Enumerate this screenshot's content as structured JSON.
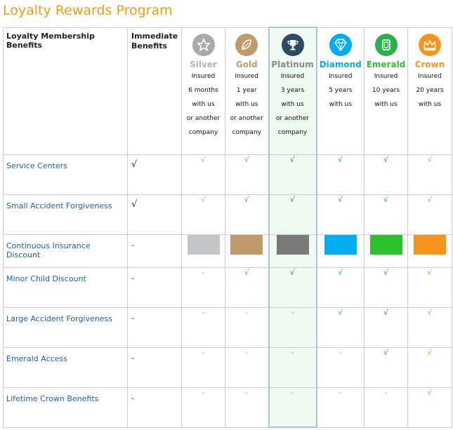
{
  "title": "Loyalty Rewards Program",
  "header": {
    "benefits_label": "Loyalty Membership Benefits",
    "immediate_label": "Immediate Benefits"
  },
  "tiers": [
    {
      "name": "Silver",
      "color": "#c3c6c8",
      "badge": "#a7a9ac",
      "icon": "star-icon",
      "desc": [
        "Insured",
        "6 months",
        "with us",
        "or another",
        "company"
      ]
    },
    {
      "name": "Gold",
      "color": "#c19a6b",
      "badge": "#c19a6b",
      "icon": "leaf-icon",
      "desc": [
        "Insured",
        "1 year",
        "with us",
        "or another",
        "company"
      ]
    },
    {
      "name": "Platinum",
      "color": "#7a7a7a",
      "badge": "#2b4a63",
      "icon": "trophy-icon",
      "desc": [
        "Insured",
        "3 years",
        "with us",
        "or another",
        "company"
      ]
    },
    {
      "name": "Diamond",
      "color": "#00aeef",
      "badge": "#00aeef",
      "icon": "diamond-icon",
      "desc": [
        "Insured",
        "5 years",
        "with us"
      ]
    },
    {
      "name": "Emerald",
      "color": "#2cc22c",
      "badge": "#2cb04a",
      "icon": "emerald-icon",
      "desc": [
        "Insured",
        "10 years",
        "with us"
      ]
    },
    {
      "name": "Crown",
      "color": "#f7941d",
      "badge": "#f7941d",
      "icon": "crown-icon",
      "desc": [
        "Insured",
        "20 years",
        "with us"
      ]
    }
  ],
  "rows": [
    {
      "label": "Service Centers",
      "immediate": "√",
      "cells": [
        "√",
        "√",
        "√",
        "√",
        "√",
        "√"
      ]
    },
    {
      "label": "Small Accident Forgiveness",
      "immediate": "√",
      "cells": [
        "√",
        "√",
        "√",
        "√",
        "√",
        "√"
      ]
    },
    {
      "label": "Continuous Insurance Discount",
      "immediate": "-",
      "cells": [
        "swatch",
        "swatch",
        "swatch",
        "swatch",
        "swatch",
        "swatch"
      ]
    },
    {
      "label": "Minor Child Discount",
      "immediate": "-",
      "cells": [
        "-",
        "√",
        "√",
        "√",
        "√",
        "√"
      ]
    },
    {
      "label": "Large Accident Forgiveness",
      "immediate": "-",
      "cells": [
        "-",
        "-",
        "-",
        "√",
        "√",
        "√"
      ]
    },
    {
      "label": "Emerald Access",
      "immediate": "-",
      "cells": [
        "-",
        "-",
        "-",
        "-",
        "√",
        "√"
      ]
    },
    {
      "label": "Lifetime Crown Benefits",
      "immediate": "-",
      "cells": [
        "-",
        "-",
        "-",
        "-",
        "-",
        "√"
      ]
    }
  ],
  "check_colors": {
    "Silver": "#a7a9ac",
    "Gold": "#c47a3a",
    "Platinum": "#5a6a60",
    "Diamond": "#00aeef",
    "Emerald": "#1faa1f",
    "Crown": "#f7941d"
  },
  "dash_color": "#999999"
}
